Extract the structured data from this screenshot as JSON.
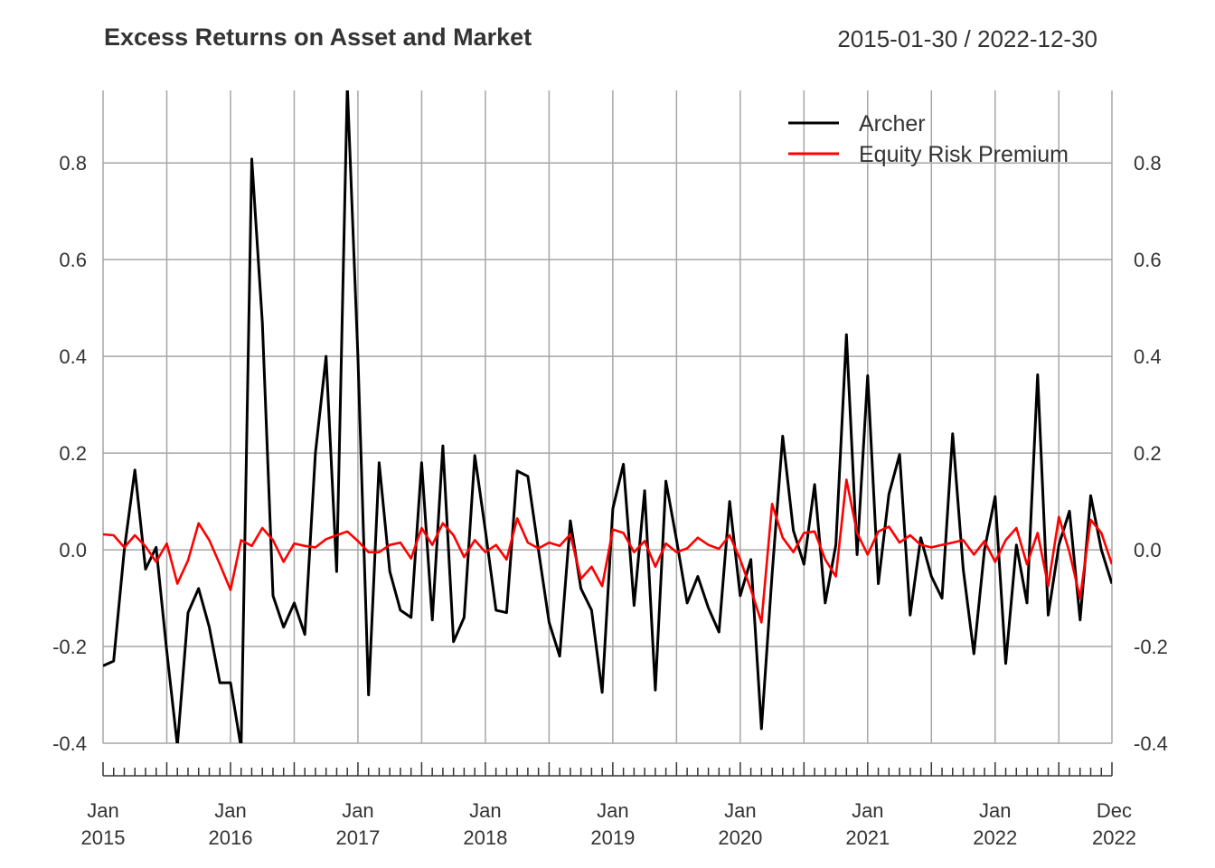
{
  "chart_data": {
    "type": "line",
    "title": "Excess Returns on Asset and Market",
    "date_range": "2015-01-30 / 2022-12-30",
    "xlabel": "",
    "ylabel": "",
    "ylim": [
      -0.4,
      0.95
    ],
    "y_ticks": [
      "-0.4",
      "-0.2",
      "0.0",
      "0.2",
      "0.4",
      "0.6",
      "0.8"
    ],
    "x_tick_labels": [
      {
        "month": "Jan",
        "year": "2015"
      },
      {
        "month": "Jan",
        "year": "2016"
      },
      {
        "month": "Jan",
        "year": "2017"
      },
      {
        "month": "Jan",
        "year": "2018"
      },
      {
        "month": "Jan",
        "year": "2019"
      },
      {
        "month": "Jan",
        "year": "2020"
      },
      {
        "month": "Jan",
        "year": "2021"
      },
      {
        "month": "Jan",
        "year": "2022"
      },
      {
        "month": "Dec",
        "year": "2022"
      }
    ],
    "x_start": "2015-01",
    "x_end": "2022-12",
    "grid": true,
    "legend_position": "top-right",
    "series": [
      {
        "name": "Archer",
        "color": "#000000",
        "values": [
          -0.24,
          -0.23,
          0.0,
          0.165,
          -0.04,
          0.005,
          -0.21,
          -0.405,
          -0.13,
          -0.08,
          -0.16,
          -0.275,
          -0.275,
          -0.41,
          0.808,
          0.47,
          -0.095,
          -0.16,
          -0.11,
          -0.175,
          0.2,
          0.4,
          -0.045,
          0.96,
          0.4,
          -0.3,
          0.18,
          -0.045,
          -0.125,
          -0.14,
          0.18,
          -0.145,
          0.215,
          -0.19,
          -0.14,
          0.195,
          0.04,
          -0.125,
          -0.13,
          0.163,
          0.152,
          0.0,
          -0.15,
          -0.22,
          0.06,
          -0.08,
          -0.125,
          -0.295,
          0.085,
          0.177,
          -0.115,
          0.122,
          -0.29,
          0.142,
          0.02,
          -0.11,
          -0.055,
          -0.12,
          -0.17,
          0.1,
          -0.095,
          -0.02,
          -0.37,
          -0.05,
          0.235,
          0.04,
          -0.03,
          0.135,
          -0.11,
          0.01,
          0.445,
          -0.01,
          0.36,
          -0.07,
          0.115,
          0.197,
          -0.135,
          0.025,
          -0.055,
          -0.1,
          0.24,
          -0.04,
          -0.215,
          0.0,
          0.11,
          -0.235,
          0.01,
          -0.11,
          0.362,
          -0.135,
          0.01,
          0.08,
          -0.145,
          0.112,
          0.0,
          -0.07
        ]
      },
      {
        "name": "Equity Risk Premium",
        "color": "#ff0000",
        "values": [
          0.032,
          0.03,
          0.005,
          0.03,
          0.007,
          -0.025,
          0.013,
          -0.07,
          -0.022,
          0.055,
          0.02,
          -0.03,
          -0.083,
          0.02,
          0.008,
          0.045,
          0.02,
          -0.025,
          0.013,
          0.008,
          0.005,
          0.022,
          0.03,
          0.038,
          0.018,
          -0.005,
          -0.005,
          0.01,
          0.015,
          -0.018,
          0.045,
          0.01,
          0.055,
          0.03,
          -0.015,
          0.02,
          -0.005,
          0.01,
          -0.02,
          0.065,
          0.015,
          0.003,
          0.015,
          0.008,
          0.032,
          -0.06,
          -0.035,
          -0.075,
          0.042,
          0.035,
          -0.005,
          0.018,
          -0.035,
          0.013,
          -0.005,
          0.003,
          0.025,
          0.01,
          0.002,
          0.03,
          -0.02,
          -0.082,
          -0.15,
          0.095,
          0.025,
          -0.005,
          0.035,
          0.038,
          -0.02,
          -0.055,
          0.145,
          0.035,
          -0.01,
          0.038,
          0.048,
          0.015,
          0.03,
          0.01,
          0.005,
          0.01,
          0.015,
          0.02,
          -0.01,
          0.018,
          -0.025,
          0.02,
          0.045,
          -0.03,
          0.035,
          -0.075,
          0.068,
          -0.005,
          -0.1,
          0.062,
          0.035,
          -0.03
        ]
      }
    ]
  }
}
